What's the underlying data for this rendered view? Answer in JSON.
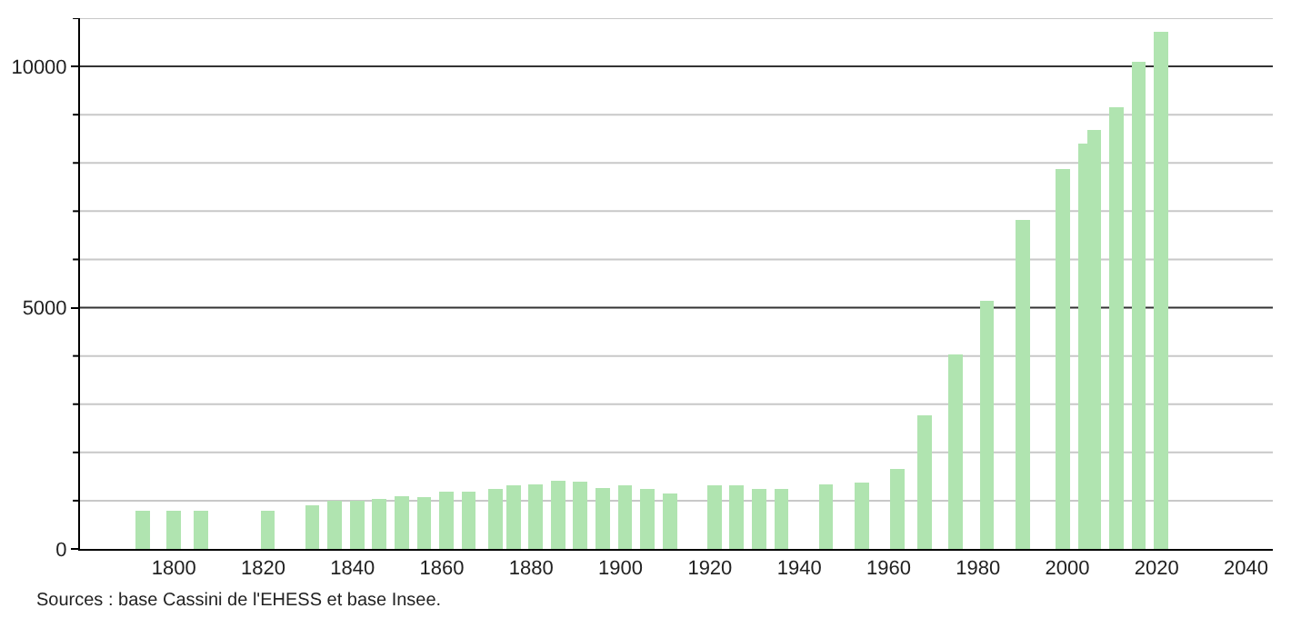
{
  "chart_data": {
    "type": "bar",
    "x": [
      1793,
      1800,
      1806,
      1821,
      1831,
      1836,
      1841,
      1846,
      1851,
      1856,
      1861,
      1866,
      1872,
      1876,
      1881,
      1886,
      1891,
      1896,
      1901,
      1906,
      1911,
      1921,
      1926,
      1931,
      1936,
      1946,
      1954,
      1962,
      1968,
      1975,
      1982,
      1990,
      1999,
      2004,
      2006,
      2011,
      2016,
      2021
    ],
    "values": [
      800,
      790,
      790,
      790,
      910,
      990,
      990,
      1040,
      1100,
      1080,
      1190,
      1190,
      1240,
      1310,
      1340,
      1410,
      1400,
      1270,
      1310,
      1240,
      1140,
      1310,
      1310,
      1240,
      1240,
      1330,
      1380,
      1650,
      2770,
      4040,
      5140,
      6820,
      7870,
      8410,
      8690,
      9160,
      10090,
      10720
    ],
    "color": "#b0e4b0",
    "xlim": [
      1779,
      2046
    ],
    "xticks": [
      1800,
      1820,
      1840,
      1860,
      1880,
      1900,
      1920,
      1940,
      1960,
      1980,
      2000,
      2020,
      2040
    ],
    "ylim": [
      0,
      11000
    ],
    "yticks": [
      0,
      {
        "value": 1000,
        "label": null
      },
      {
        "value": 2000,
        "label": null
      },
      {
        "value": 3000,
        "label": null
      },
      {
        "value": 4000,
        "label": null
      },
      5000,
      {
        "value": 6000,
        "label": null
      },
      {
        "value": 7000,
        "label": null
      },
      {
        "value": 8000,
        "label": null
      },
      {
        "value": 9000,
        "label": null
      },
      10000,
      {
        "value": 11000,
        "label": null
      }
    ],
    "grid": "y",
    "annotations": [
      "Sources : base Cassini de l'EHESS et base Insee."
    ]
  }
}
